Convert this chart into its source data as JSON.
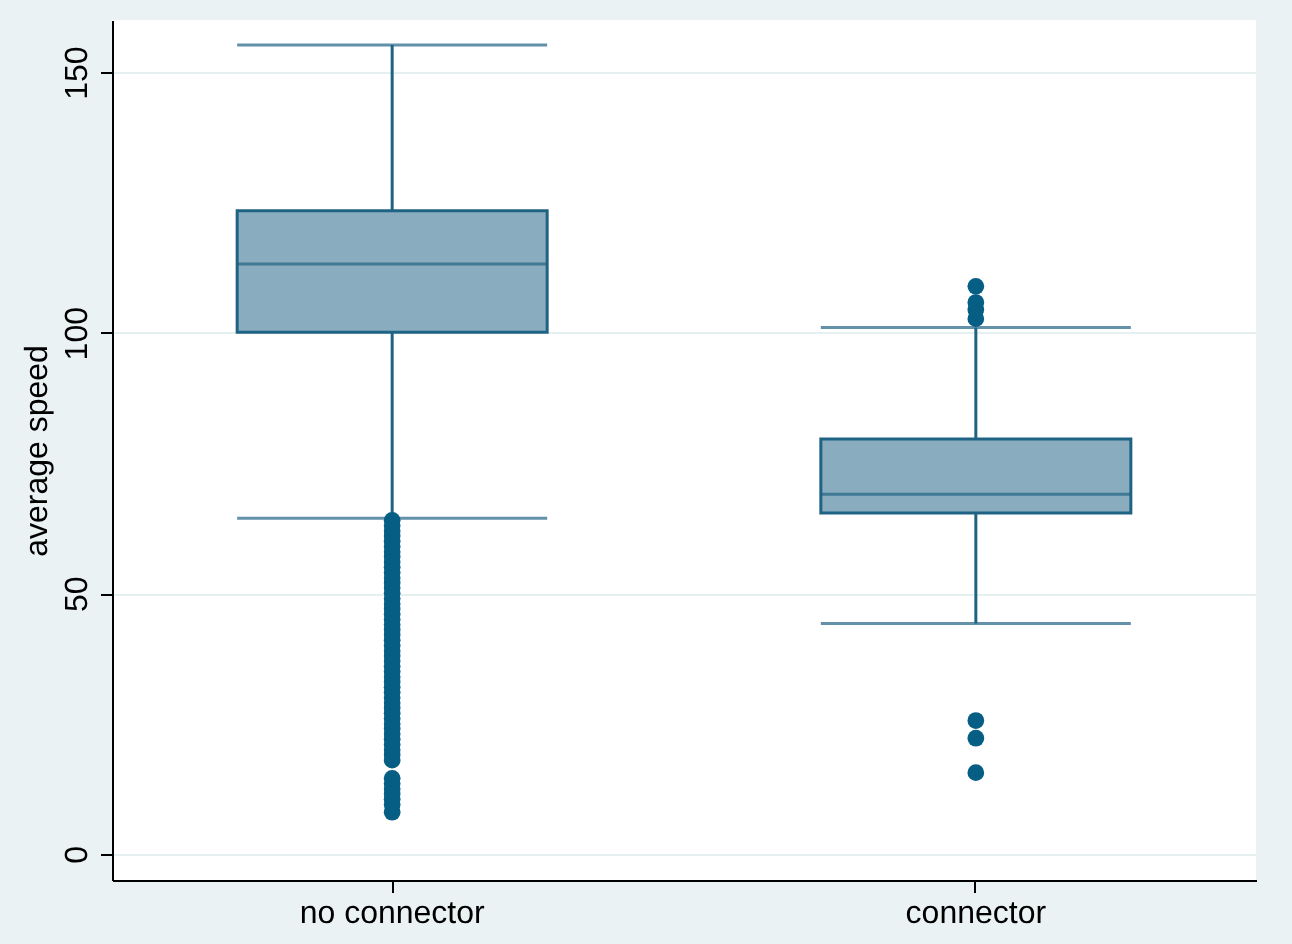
{
  "chart_data": {
    "type": "box",
    "ylabel": "average speed",
    "categories": [
      "no connector",
      "connector"
    ],
    "ylim": [
      -5,
      160
    ],
    "yticks": [
      0,
      50,
      100,
      150
    ],
    "grid": "y",
    "series": [
      {
        "color": "#89adbe",
        "boxes": [
          {
            "low": 64.4,
            "q1": 100.1,
            "median": 113.2,
            "q3": 123.4,
            "high": 155.2,
            "outliers": [
              64,
              63,
              62,
              61,
              60,
              59,
              58,
              57,
              56,
              55,
              54,
              53,
              52,
              51,
              50,
              49,
              48,
              47,
              46,
              45,
              44,
              43,
              42,
              41,
              40,
              39,
              38,
              37,
              36,
              35,
              34,
              33,
              32,
              31,
              30,
              29,
              28,
              27,
              26,
              25,
              24,
              23,
              22,
              21,
              20,
              19,
              18,
              14.5,
              13.5,
              12.5,
              11.5,
              10.5,
              9.5,
              8
            ]
          },
          {
            "low": 44.2,
            "q1": 65.4,
            "median": 69.0,
            "q3": 79.6,
            "high": 101.0,
            "outliers": [
              108.9,
              105.8,
              104.4,
              102.7,
              25.6,
              22.2,
              15.6
            ]
          }
        ]
      }
    ]
  }
}
